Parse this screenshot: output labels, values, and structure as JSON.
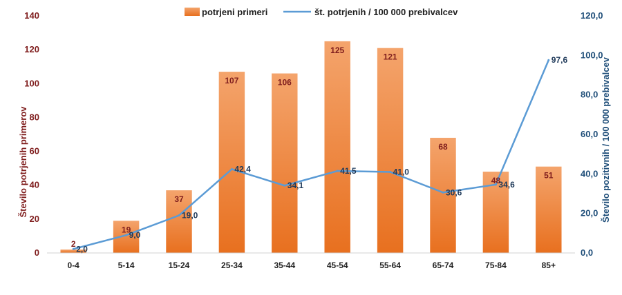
{
  "chart_data": {
    "type": "bar",
    "categories": [
      "0-4",
      "5-14",
      "15-24",
      "25-34",
      "35-44",
      "45-54",
      "55-64",
      "65-74",
      "75-84",
      "85+"
    ],
    "series": [
      {
        "name": "potrjeni primeri",
        "type": "bar",
        "axis": "left",
        "values": [
          2,
          19,
          37,
          107,
          106,
          125,
          121,
          68,
          48,
          51
        ],
        "labels": [
          "2",
          "19",
          "37",
          "107",
          "106",
          "125",
          "121",
          "68",
          "48",
          "51"
        ],
        "color": "#ED7D31"
      },
      {
        "name": "št. potrjenih / 100 000 prebivalcev",
        "type": "line",
        "axis": "right",
        "values": [
          2.0,
          9.0,
          19.0,
          42.4,
          34.1,
          41.5,
          41.0,
          30.6,
          34.6,
          97.6
        ],
        "labels": [
          "2,0",
          "9,0",
          "19,0",
          "42,4",
          "34,1",
          "41,5",
          "41,0",
          "30,6",
          "34,6",
          "97,6"
        ],
        "color": "#5B9BD5"
      }
    ],
    "ylabel": "Število potrjenih  primerov",
    "ylabel_right": "Število pozitivnih  / 100 000 prebivalcev",
    "ylim": [
      0,
      140
    ],
    "ylim_right": [
      0,
      120
    ],
    "yticks": [
      "0",
      "20",
      "40",
      "60",
      "80",
      "100",
      "120",
      "140"
    ],
    "yticks_right": [
      "0,0",
      "20,0",
      "40,0",
      "60,0",
      "80,0",
      "100,0",
      "120,0"
    ],
    "legend_position": "top-center",
    "grid": false
  }
}
